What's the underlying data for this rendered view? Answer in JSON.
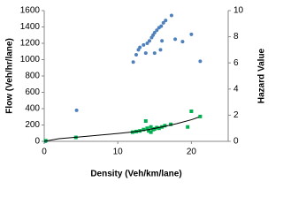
{
  "chart_data": {
    "type": "scatter",
    "xlabel": "Density (Veh/km/lane)",
    "ylabel": "Flow (Veh/hr/lane)",
    "y2label": "Hazard Value",
    "xlim": [
      0,
      25
    ],
    "xticks": [
      0,
      10,
      20
    ],
    "ylim": [
      0,
      1600
    ],
    "yticks": [
      0,
      200,
      400,
      600,
      800,
      1000,
      1200,
      1400,
      1600
    ],
    "y2lim": [
      0,
      10
    ],
    "y2ticks": [
      0,
      2,
      4,
      6,
      8,
      10
    ],
    "series": [
      {
        "color": "#4f81bd",
        "marker": "circle",
        "axis": "y",
        "x": [
          0.2,
          4.4,
          12.1,
          12.5,
          12.8,
          13.0,
          13.5,
          13.8,
          14.0,
          14.3,
          14.6,
          14.8,
          15.0,
          15.3,
          15.6,
          15.9,
          16.2,
          16.5,
          15.0,
          15.8,
          16.0,
          17.3,
          17.8,
          18.8,
          20.0,
          21.2
        ],
        "values": [
          0,
          380,
          970,
          1060,
          1120,
          1150,
          1180,
          1080,
          1200,
          1230,
          1270,
          1300,
          1330,
          1360,
          1390,
          1410,
          1450,
          1480,
          1080,
          1120,
          1230,
          1540,
          1250,
          1220,
          1310,
          980
        ]
      },
      {
        "color": "#00b050",
        "marker": "square",
        "axis": "y2",
        "x": [
          0.2,
          4.3,
          12.0,
          12.5,
          13.0,
          13.5,
          14.0,
          14.2,
          14.5,
          14.8,
          15.0,
          15.3,
          15.6,
          16.0,
          16.4,
          13.8,
          17.2,
          19.5,
          20.0,
          21.2,
          14.5
        ],
        "values": [
          0.05,
          0.3,
          0.7,
          0.75,
          0.8,
          0.9,
          1.0,
          0.8,
          1.1,
          0.9,
          0.95,
          1.05,
          1.0,
          1.1,
          1.2,
          1.55,
          1.3,
          1.1,
          2.3,
          1.9,
          0.7
        ]
      },
      {
        "color": "#000000",
        "marker": "line",
        "axis": "y2",
        "x": [
          0,
          2,
          5,
          8,
          10,
          12,
          14,
          16,
          18,
          20,
          21
        ],
        "values": [
          0,
          0.2,
          0.35,
          0.5,
          0.6,
          0.72,
          0.88,
          1.1,
          1.35,
          1.65,
          1.85
        ]
      }
    ]
  }
}
